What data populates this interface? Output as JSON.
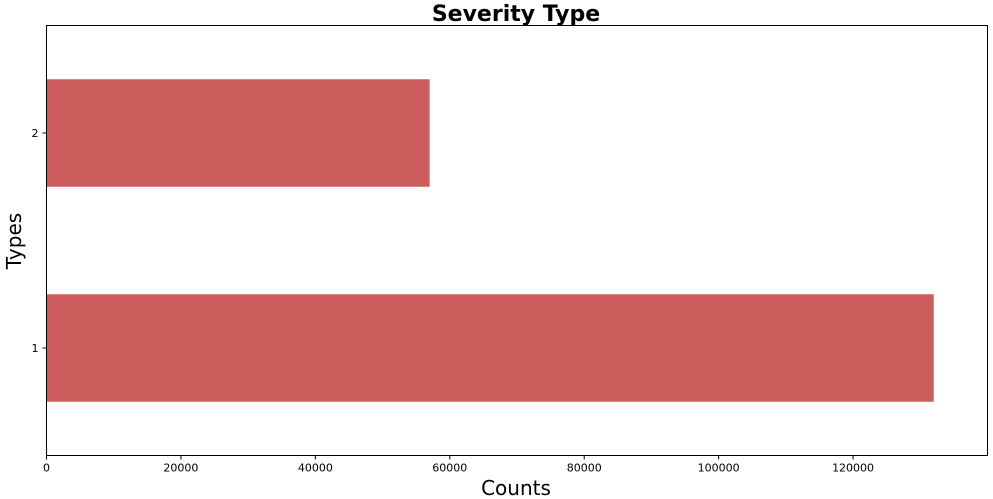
{
  "chart_data": {
    "type": "bar",
    "orientation": "horizontal",
    "title": "Severity Type",
    "xlabel": "Counts",
    "ylabel": "Types",
    "categories": [
      "1",
      "2"
    ],
    "values": [
      132000,
      57000
    ],
    "xlim": [
      0,
      140000
    ],
    "xticks": [
      0,
      20000,
      40000,
      60000,
      80000,
      100000,
      120000
    ],
    "xtick_labels": [
      "0",
      "20000",
      "40000",
      "60000",
      "80000",
      "100000",
      "120000"
    ],
    "grid": false,
    "legend": "none",
    "bar_color": "#cd5c5c"
  }
}
